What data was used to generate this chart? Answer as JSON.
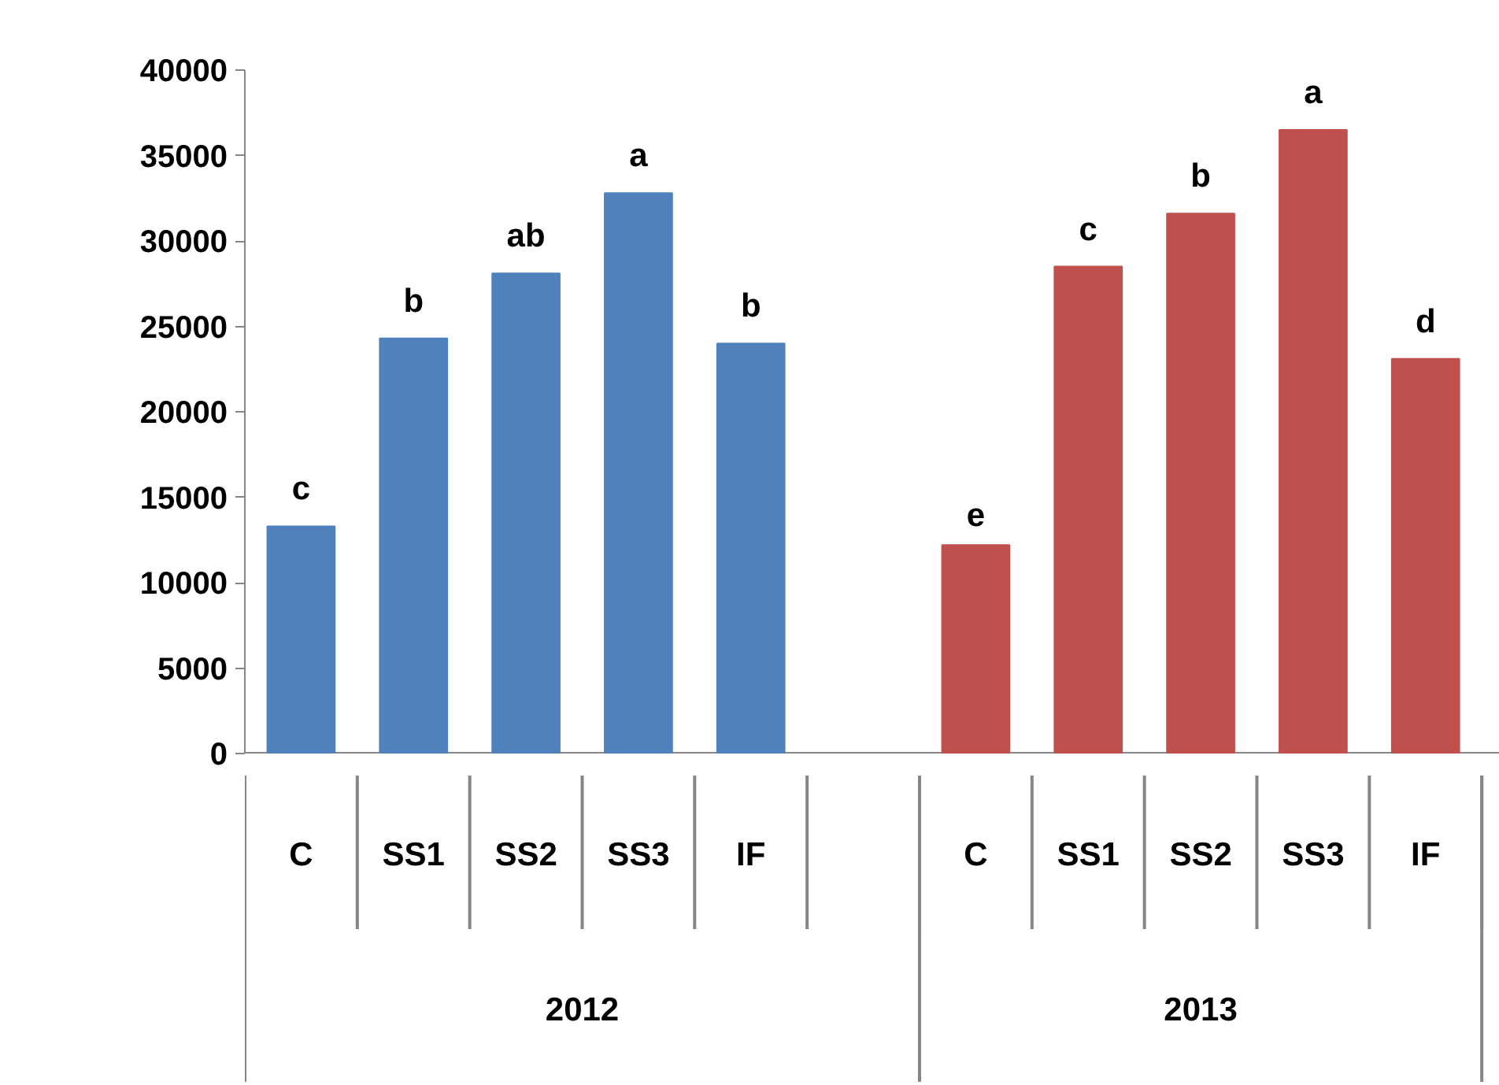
{
  "chart_data": {
    "type": "bar",
    "categories": [
      "C",
      "SS1",
      "SS2",
      "SS3",
      "IF",
      null,
      "C",
      "SS1",
      "SS2",
      "SS3",
      "IF"
    ],
    "series": [
      {
        "color": "#4f81bd",
        "values": [
          13300,
          24300,
          28100,
          32800,
          24000,
          null,
          null,
          null,
          null,
          null,
          null
        ],
        "value_labels": [
          "c",
          "b",
          "ab",
          "a",
          "b",
          null,
          null,
          null,
          null,
          null,
          null
        ]
      },
      {
        "color": "#c0504d",
        "values": [
          null,
          null,
          null,
          null,
          null,
          null,
          12200,
          28500,
          31600,
          36500,
          23100
        ],
        "value_labels": [
          null,
          null,
          null,
          null,
          null,
          null,
          "e",
          "c",
          "b",
          "a",
          "d"
        ]
      }
    ],
    "ylim": [
      0,
      40000
    ],
    "yticks": [
      0,
      5000,
      10000,
      15000,
      20000,
      25000,
      30000,
      35000,
      40000
    ],
    "annotations": [
      "2012",
      "2013"
    ],
    "grid": false
  }
}
